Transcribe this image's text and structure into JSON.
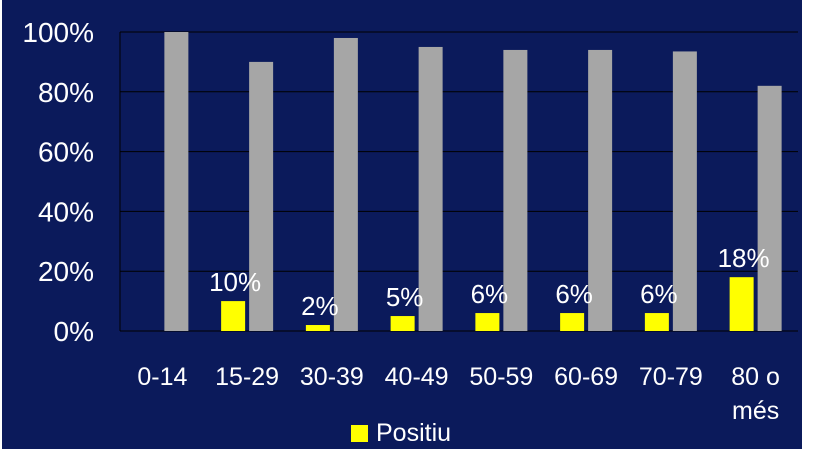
{
  "colors": {
    "background": "#0b1a5b",
    "positive_series": "#ffff00",
    "other_series": "#a6a6a6",
    "text": "#ffffff"
  },
  "legend": {
    "label": "Positiu"
  },
  "chart_data": {
    "type": "bar",
    "categories": [
      "0-14",
      "15-29",
      "30-39",
      "40-49",
      "50-59",
      "60-69",
      "70-79",
      "80 o més"
    ],
    "category_label_lines": [
      [
        "0-14"
      ],
      [
        "15-29"
      ],
      [
        "30-39"
      ],
      [
        "40-49"
      ],
      [
        "50-59"
      ],
      [
        "60-69"
      ],
      [
        "70-79"
      ],
      [
        "80 o",
        "més"
      ]
    ],
    "series": [
      {
        "name": "Positiu",
        "color": "#ffff00",
        "values": [
          0,
          10,
          2,
          5,
          6,
          6,
          6,
          18
        ],
        "data_labels": [
          "",
          "10%",
          "2%",
          "5%",
          "6%",
          "6%",
          "6%",
          "18%"
        ]
      },
      {
        "color": "#a6a6a6",
        "values": [
          100,
          90,
          98,
          95,
          94,
          94,
          93.5,
          82
        ]
      }
    ],
    "yticks": [
      "0%",
      "20%",
      "40%",
      "60%",
      "80%",
      "100%"
    ],
    "ylim": [
      0,
      100
    ],
    "grid": true,
    "legend_position": "bottom"
  }
}
